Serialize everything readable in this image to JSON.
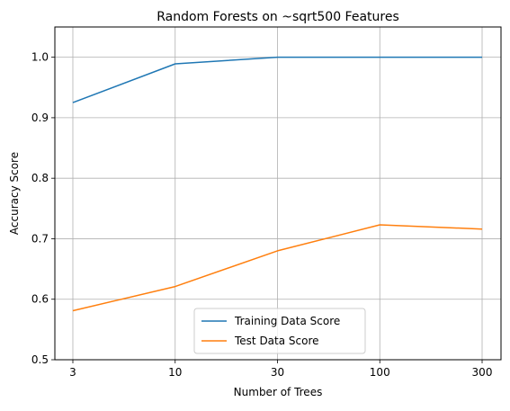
{
  "chart_data": {
    "type": "line",
    "title": "Random Forests on ~sqrt500 Features",
    "xlabel": "Number of Trees",
    "ylabel": "Accuracy Score",
    "x": [
      "3",
      "10",
      "30",
      "100",
      "300"
    ],
    "ylim": [
      0.5,
      1.05
    ],
    "yticks": [
      "0.5",
      "0.6",
      "0.7",
      "0.8",
      "0.9",
      "1.0"
    ],
    "grid": true,
    "legend_position": "lower center",
    "series": [
      {
        "name": "Training Data Score",
        "color": "#1f77b4",
        "values": [
          0.925,
          0.989,
          1.0,
          1.0,
          1.0
        ]
      },
      {
        "name": "Test Data Score",
        "color": "#ff7f0e",
        "values": [
          0.581,
          0.621,
          0.68,
          0.723,
          0.716
        ]
      }
    ]
  }
}
